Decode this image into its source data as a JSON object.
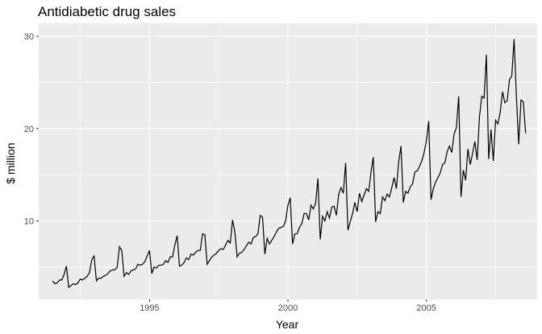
{
  "chart_data": {
    "type": "line",
    "title": "Antidiabetic drug sales",
    "xlabel": "Year",
    "ylabel": "$ million",
    "x_ticks": [
      1995,
      2000,
      2005
    ],
    "y_ticks": [
      10,
      20,
      30
    ],
    "xlim": [
      1991.0,
      2009.0
    ],
    "ylim": [
      1.5,
      31.4
    ],
    "grid": true,
    "colors": {
      "panel": "#ebebeb",
      "grid_major": "#ffffff",
      "line": "#000000",
      "tick_text": "#4d4d4d"
    },
    "series": [
      {
        "x_start": 1991.5,
        "x_step": 0.08333333,
        "frequency": "monthly",
        "values": [
          3.5,
          3.2,
          3.3,
          3.6,
          3.6,
          4.2,
          5.1,
          2.8,
          3.0,
          3.2,
          3.1,
          3.3,
          3.7,
          3.6,
          3.8,
          4.0,
          4.4,
          5.8,
          6.2,
          3.5,
          3.8,
          3.8,
          4.0,
          4.1,
          4.3,
          4.6,
          4.7,
          4.7,
          5.0,
          7.2,
          6.8,
          4.0,
          4.4,
          4.2,
          4.6,
          4.7,
          4.8,
          5.3,
          5.2,
          5.3,
          5.6,
          6.2,
          6.8,
          4.3,
          5.0,
          4.9,
          5.2,
          5.2,
          5.3,
          5.7,
          5.5,
          6.1,
          6.1,
          7.4,
          8.4,
          5.1,
          5.2,
          5.5,
          6.0,
          5.8,
          6.4,
          6.3,
          6.6,
          6.8,
          6.8,
          8.6,
          8.5,
          5.3,
          5.7,
          6.1,
          6.3,
          6.5,
          6.8,
          7.0,
          6.9,
          7.4,
          7.9,
          7.6,
          10.1,
          8.8,
          6.1,
          6.5,
          6.6,
          6.9,
          7.3,
          7.7,
          7.5,
          8.2,
          8.3,
          8.6,
          10.6,
          10.4,
          6.4,
          8.1,
          7.5,
          7.9,
          8.3,
          8.8,
          9.2,
          9.3,
          9.4,
          10.0,
          11.7,
          12.5,
          7.5,
          8.6,
          8.6,
          9.3,
          9.7,
          10.8,
          10.8,
          10.1,
          11.7,
          11.3,
          11.9,
          14.6,
          8.0,
          10.5,
          10.0,
          11.0,
          10.3,
          11.5,
          11.6,
          10.6,
          12.9,
          13.6,
          13.0,
          16.3,
          9.0,
          9.9,
          10.8,
          12.0,
          11.0,
          13.0,
          12.1,
          12.8,
          13.5,
          13.2,
          15.3,
          16.9,
          9.9,
          11.0,
          10.8,
          12.6,
          12.2,
          12.9,
          12.6,
          13.6,
          14.7,
          13.5,
          16.4,
          18.1,
          12.0,
          13.2,
          13.0,
          13.7,
          14.0,
          15.3,
          15.4,
          15.9,
          16.5,
          17.4,
          18.7,
          20.8,
          12.3,
          13.5,
          14.2,
          14.7,
          15.2,
          16.1,
          16.3,
          17.5,
          18.1,
          17.4,
          19.4,
          20.1,
          23.5,
          12.6,
          15.5,
          14.4,
          17.8,
          16.1,
          17.3,
          18.6,
          16.6,
          21.3,
          23.5,
          23.3,
          28.0,
          16.7,
          19.9,
          16.5,
          20.9,
          20.5,
          21.8,
          24.0,
          22.8,
          23.0,
          25.3,
          25.7,
          29.7,
          23.5,
          18.3,
          23.1,
          22.9,
          19.5
        ]
      }
    ]
  }
}
